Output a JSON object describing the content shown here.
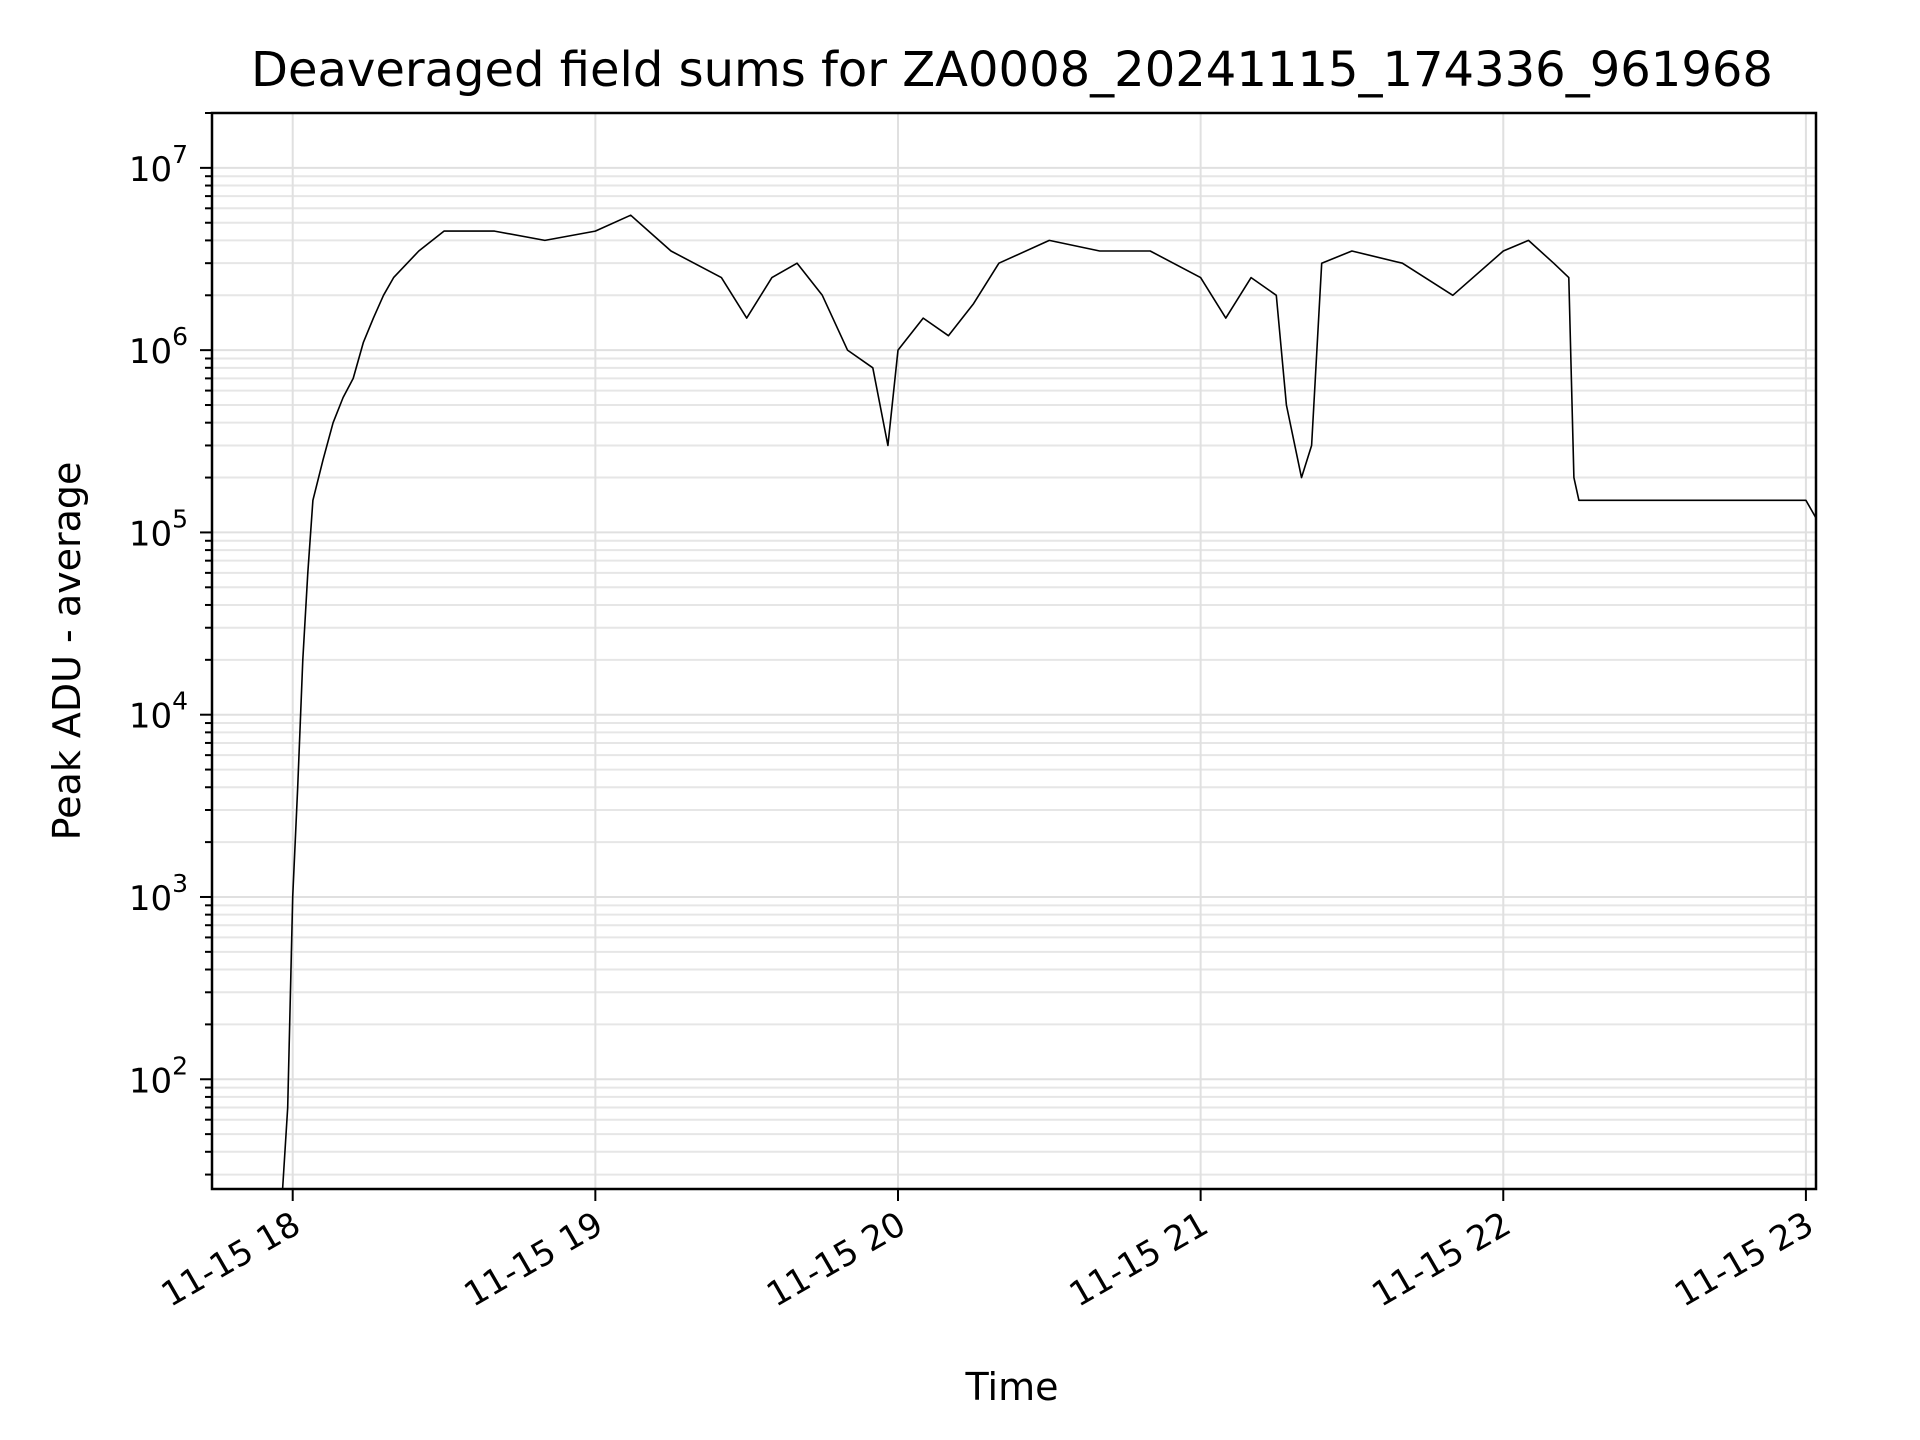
{
  "chart_data": {
    "type": "line",
    "title": "Deaveraged field sums for ZA0008_20241115_174336_961968",
    "xlabel": "Time",
    "ylabel": "Peak ADU - average",
    "yscale": "log",
    "grid": true,
    "xlim": [
      "2024-11-15 17:44",
      "2024-11-15 23:02"
    ],
    "ylim": [
      25,
      20000000
    ],
    "x_ticks": [
      "11-15 18",
      "11-15 19",
      "11-15 20",
      "11-15 21",
      "11-15 22",
      "11-15 23"
    ],
    "y_tick_values": [
      100,
      1000,
      10000,
      100000,
      1000000,
      10000000
    ],
    "y_ticks": [
      {
        "base": "10",
        "exp": "2"
      },
      {
        "base": "10",
        "exp": "3"
      },
      {
        "base": "10",
        "exp": "4"
      },
      {
        "base": "10",
        "exp": "5"
      },
      {
        "base": "10",
        "exp": "6"
      },
      {
        "base": "10",
        "exp": "7"
      }
    ],
    "series": [
      {
        "color": "#000000",
        "x": [
          "2024-11-15 17:58",
          "2024-11-15 17:59",
          "2024-11-15 18:00",
          "2024-11-15 18:01",
          "2024-11-15 18:02",
          "2024-11-15 18:03",
          "2024-11-15 18:04",
          "2024-11-15 18:06",
          "2024-11-15 18:08",
          "2024-11-15 18:10",
          "2024-11-15 18:12",
          "2024-11-15 18:14",
          "2024-11-15 18:16",
          "2024-11-15 18:18",
          "2024-11-15 18:20",
          "2024-11-15 18:25",
          "2024-11-15 18:30",
          "2024-11-15 18:40",
          "2024-11-15 18:50",
          "2024-11-15 19:00",
          "2024-11-15 19:07",
          "2024-11-15 19:15",
          "2024-11-15 19:25",
          "2024-11-15 19:30",
          "2024-11-15 19:35",
          "2024-11-15 19:40",
          "2024-11-15 19:45",
          "2024-11-15 19:50",
          "2024-11-15 19:55",
          "2024-11-15 19:58",
          "2024-11-15 20:00",
          "2024-11-15 20:05",
          "2024-11-15 20:10",
          "2024-11-15 20:15",
          "2024-11-15 20:20",
          "2024-11-15 20:30",
          "2024-11-15 20:40",
          "2024-11-15 20:50",
          "2024-11-15 21:00",
          "2024-11-15 21:05",
          "2024-11-15 21:10",
          "2024-11-15 21:15",
          "2024-11-15 21:17",
          "2024-11-15 21:20",
          "2024-11-15 21:22",
          "2024-11-15 21:24",
          "2024-11-15 21:30",
          "2024-11-15 21:40",
          "2024-11-15 21:50",
          "2024-11-15 22:00",
          "2024-11-15 22:05",
          "2024-11-15 22:10",
          "2024-11-15 22:13",
          "2024-11-15 22:14",
          "2024-11-15 22:15",
          "2024-11-15 22:20",
          "2024-11-15 22:30",
          "2024-11-15 22:40",
          "2024-11-15 22:50",
          "2024-11-15 23:00",
          "2024-11-15 23:02"
        ],
        "values": [
          25,
          70,
          1000,
          4000,
          20000,
          60000,
          150000,
          250000,
          400000,
          550000,
          700000,
          1100000,
          1500000,
          2000000,
          2500000,
          3500000,
          4500000,
          4500000,
          4000000,
          4500000,
          5500000,
          3500000,
          2500000,
          1500000,
          2500000,
          3000000,
          2000000,
          1000000,
          800000,
          300000,
          1000000,
          1500000,
          1200000,
          1800000,
          3000000,
          4000000,
          3500000,
          3500000,
          2500000,
          1500000,
          2500000,
          2000000,
          500000,
          200000,
          300000,
          3000000,
          3500000,
          3000000,
          2000000,
          3500000,
          4000000,
          3000000,
          2500000,
          200000,
          150000,
          150000,
          150000,
          150000,
          150000,
          150000,
          120000
        ]
      }
    ]
  }
}
